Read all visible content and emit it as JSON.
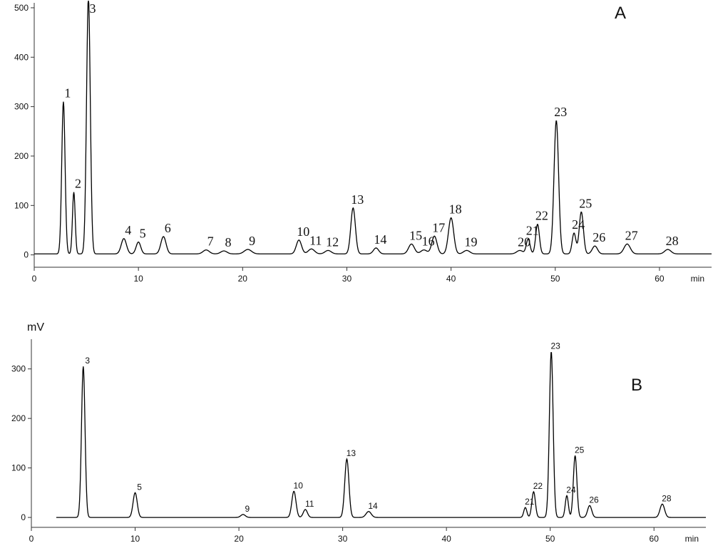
{
  "chart_data": [
    {
      "type": "line",
      "panel_label": "A",
      "x_unit": "min",
      "xlim": [
        0,
        65
      ],
      "ylim": [
        -25,
        510
      ],
      "xticks": [
        0,
        10,
        20,
        30,
        40,
        50,
        60
      ],
      "yticks": [
        0,
        100,
        200,
        300,
        400,
        500
      ],
      "baseline": 2,
      "peaks": [
        {
          "label": "1",
          "rt": 2.8,
          "height": 308,
          "width": 0.16
        },
        {
          "label": "2",
          "rt": 3.8,
          "height": 125,
          "width": 0.13
        },
        {
          "label": "3",
          "rt": 5.2,
          "height": 520,
          "width": 0.18
        },
        {
          "label": "4",
          "rt": 8.6,
          "height": 31,
          "width": 0.25
        },
        {
          "label": "5",
          "rt": 10.0,
          "height": 24,
          "width": 0.22
        },
        {
          "label": "6",
          "rt": 12.4,
          "height": 35,
          "width": 0.25
        },
        {
          "label": "7",
          "rt": 16.5,
          "height": 8,
          "width": 0.3
        },
        {
          "label": "8",
          "rt": 18.2,
          "height": 6,
          "width": 0.3
        },
        {
          "label": "9",
          "rt": 20.5,
          "height": 9,
          "width": 0.35
        },
        {
          "label": "10",
          "rt": 25.4,
          "height": 28,
          "width": 0.25
        },
        {
          "label": "11",
          "rt": 26.6,
          "height": 10,
          "width": 0.3
        },
        {
          "label": "12",
          "rt": 28.2,
          "height": 7,
          "width": 0.3
        },
        {
          "label": "13",
          "rt": 30.6,
          "height": 93,
          "width": 0.22
        },
        {
          "label": "14",
          "rt": 32.8,
          "height": 12,
          "width": 0.25
        },
        {
          "label": "15",
          "rt": 36.2,
          "height": 20,
          "width": 0.28
        },
        {
          "label": "16",
          "rt": 37.4,
          "height": 8,
          "width": 0.3
        },
        {
          "label": "17",
          "rt": 38.4,
          "height": 36,
          "width": 0.25
        },
        {
          "label": "18",
          "rt": 40.0,
          "height": 73,
          "width": 0.25
        },
        {
          "label": "19",
          "rt": 41.5,
          "height": 7,
          "width": 0.3
        },
        {
          "label": "20",
          "rt": 46.6,
          "height": 7,
          "width": 0.3
        },
        {
          "label": "21",
          "rt": 47.4,
          "height": 30,
          "width": 0.18
        },
        {
          "label": "22",
          "rt": 48.3,
          "height": 60,
          "width": 0.18
        },
        {
          "label": "23",
          "rt": 50.1,
          "height": 270,
          "width": 0.22
        },
        {
          "label": "24",
          "rt": 51.8,
          "height": 42,
          "width": 0.18
        },
        {
          "label": "25",
          "rt": 52.5,
          "height": 85,
          "width": 0.2
        },
        {
          "label": "26",
          "rt": 53.8,
          "height": 16,
          "width": 0.25
        },
        {
          "label": "27",
          "rt": 56.9,
          "height": 20,
          "width": 0.3
        },
        {
          "label": "28",
          "rt": 60.8,
          "height": 9,
          "width": 0.3
        }
      ]
    },
    {
      "type": "line",
      "panel_label": "B",
      "ylabel": "mV",
      "x_unit": "min",
      "xlim": [
        0,
        65
      ],
      "ylim": [
        -20,
        360
      ],
      "xticks": [
        0,
        10,
        20,
        30,
        40,
        50,
        60
      ],
      "yticks": [
        0,
        100,
        200,
        300
      ],
      "baseline": 0,
      "peaks": [
        {
          "label": "3",
          "rt": 5.0,
          "height": 305,
          "width": 0.17
        },
        {
          "label": "5",
          "rt": 10.0,
          "height": 50,
          "width": 0.2
        },
        {
          "label": "9",
          "rt": 20.4,
          "height": 6,
          "width": 0.22
        },
        {
          "label": "10",
          "rt": 25.3,
          "height": 53,
          "width": 0.2
        },
        {
          "label": "11",
          "rt": 26.4,
          "height": 16,
          "width": 0.2
        },
        {
          "label": "13",
          "rt": 30.4,
          "height": 118,
          "width": 0.2
        },
        {
          "label": "14",
          "rt": 32.5,
          "height": 12,
          "width": 0.25
        },
        {
          "label": "21",
          "rt": 47.6,
          "height": 20,
          "width": 0.15
        },
        {
          "label": "22",
          "rt": 48.4,
          "height": 52,
          "width": 0.17
        },
        {
          "label": "23",
          "rt": 50.1,
          "height": 335,
          "width": 0.18
        },
        {
          "label": "24",
          "rt": 51.6,
          "height": 44,
          "width": 0.15
        },
        {
          "label": "25",
          "rt": 52.4,
          "height": 125,
          "width": 0.17
        },
        {
          "label": "26",
          "rt": 53.8,
          "height": 24,
          "width": 0.2
        },
        {
          "label": "28",
          "rt": 60.8,
          "height": 27,
          "width": 0.22
        }
      ]
    }
  ]
}
